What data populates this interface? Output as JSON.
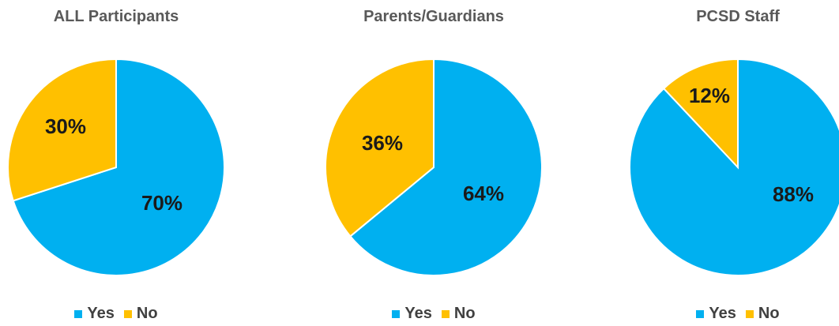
{
  "chart_data": [
    {
      "type": "pie",
      "title": "ALL Participants",
      "categories": [
        "Yes",
        "No"
      ],
      "values": [
        70,
        30
      ],
      "labels": [
        "70%",
        "30%"
      ],
      "colors": [
        "#00B0F0",
        "#FFC000"
      ],
      "legend": "bottom",
      "legend_labels": [
        "Yes",
        "No"
      ]
    },
    {
      "type": "pie",
      "title": "Parents/Guardians",
      "categories": [
        "Yes",
        "No"
      ],
      "values": [
        64,
        36
      ],
      "labels": [
        "64%",
        "36%"
      ],
      "colors": [
        "#00B0F0",
        "#FFC000"
      ],
      "legend": "bottom",
      "legend_labels": [
        "Yes",
        "No"
      ]
    },
    {
      "type": "pie",
      "title": "PCSD Staff",
      "categories": [
        "Yes",
        "No"
      ],
      "values": [
        88,
        12
      ],
      "labels": [
        "88%",
        "12%"
      ],
      "colors": [
        "#00B0F0",
        "#FFC000"
      ],
      "legend": "bottom",
      "legend_labels": [
        "Yes",
        "No"
      ]
    }
  ]
}
